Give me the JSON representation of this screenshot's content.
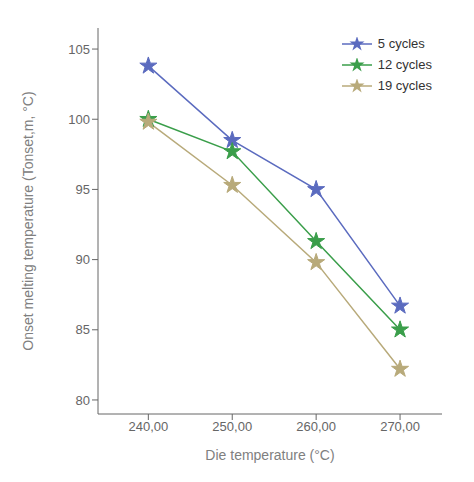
{
  "chart_data": {
    "type": "line",
    "xlabel": "Die temperature (°C)",
    "ylabel": "Onset melting temperature (Tonset,m, °C)",
    "x": [
      240,
      250,
      260,
      270
    ],
    "series": [
      {
        "name": "5 cycles",
        "color": "#5b6bbf",
        "marker": "star",
        "values": [
          103.8,
          98.5,
          95.0,
          86.7
        ]
      },
      {
        "name": "12 cycles",
        "color": "#3a9e4a",
        "marker": "star",
        "values": [
          100.0,
          97.7,
          91.3,
          85.0
        ]
      },
      {
        "name": "19 cycles",
        "color": "#b8aa7a",
        "marker": "star",
        "values": [
          99.8,
          95.3,
          89.8,
          82.2
        ]
      }
    ],
    "xlim": [
      234,
      275
    ],
    "ylim": [
      79,
      106.5
    ],
    "xticks": [
      {
        "value": 240,
        "label": "240,00"
      },
      {
        "value": 250,
        "label": "250,00"
      },
      {
        "value": 260,
        "label": "260,00"
      },
      {
        "value": 270,
        "label": "270,00"
      }
    ],
    "yticks": [
      80,
      85,
      90,
      95,
      100,
      105
    ],
    "grid": false,
    "legend": "upper right"
  }
}
